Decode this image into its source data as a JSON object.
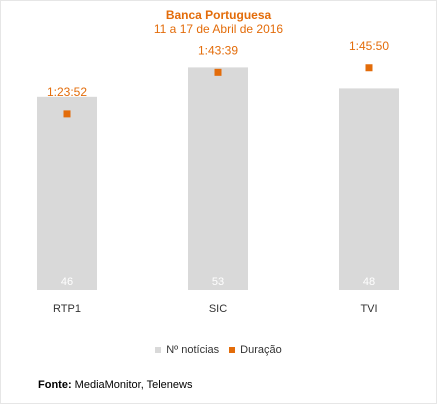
{
  "chart": {
    "title": "Banca Portuguesa",
    "subtitle": "11 a 17 de Abril de 2016"
  },
  "legend": {
    "bars_label": "Nº notícias",
    "points_label": "Duração"
  },
  "source": {
    "label": "Fonte:",
    "text": " MediaMonitor, Telenews"
  },
  "colors": {
    "bar": "#d9d9d9",
    "point": "#e36c0a",
    "bar_label": "#ffffff",
    "axis_label": "#333333"
  },
  "chart_data": {
    "type": "bar",
    "categories": [
      "RTP1",
      "SIC",
      "TVI"
    ],
    "series": [
      {
        "name": "Nº notícias",
        "type": "bar",
        "values": [
          46,
          53,
          48
        ]
      },
      {
        "name": "Duração",
        "type": "scatter",
        "values": [
          "1:23:52",
          "1:43:39",
          "1:45:50"
        ],
        "seconds": [
          5032,
          6219,
          6350
        ]
      }
    ],
    "title": "Banca Portuguesa",
    "subtitle": "11 a 17 de Abril de 2016",
    "bars_ylim": [
      0,
      60
    ],
    "duration_ylim_seconds": [
      0,
      7200
    ],
    "legend_position": "bottom"
  }
}
